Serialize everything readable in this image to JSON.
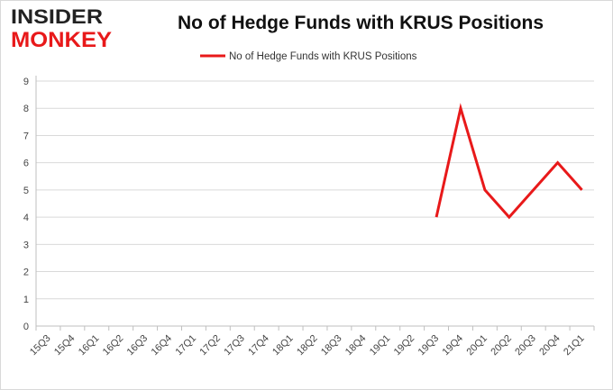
{
  "logo": {
    "line1": "INSIDER",
    "line2": "MONKEY"
  },
  "chart_data": {
    "type": "line",
    "title": "No of Hedge Funds with KRUS Positions",
    "xlabel": "",
    "ylabel": "",
    "categories": [
      "15Q3",
      "15Q4",
      "16Q1",
      "16Q2",
      "16Q3",
      "16Q4",
      "17Q1",
      "17Q2",
      "17Q3",
      "17Q4",
      "18Q1",
      "18Q2",
      "18Q3",
      "18Q4",
      "19Q1",
      "19Q2",
      "19Q3",
      "19Q4",
      "20Q1",
      "20Q2",
      "20Q3",
      "20Q4",
      "21Q1"
    ],
    "series": [
      {
        "name": "No of Hedge Funds with KRUS Positions",
        "color": "#e8191a",
        "values": [
          null,
          null,
          null,
          null,
          null,
          null,
          null,
          null,
          null,
          null,
          null,
          null,
          null,
          null,
          null,
          null,
          4,
          8,
          5,
          4,
          5,
          6,
          5
        ]
      }
    ],
    "ylim": [
      0,
      9
    ],
    "yticks": [
      0,
      1,
      2,
      3,
      4,
      5,
      6,
      7,
      8,
      9
    ],
    "grid": true,
    "legend": "top-center"
  }
}
